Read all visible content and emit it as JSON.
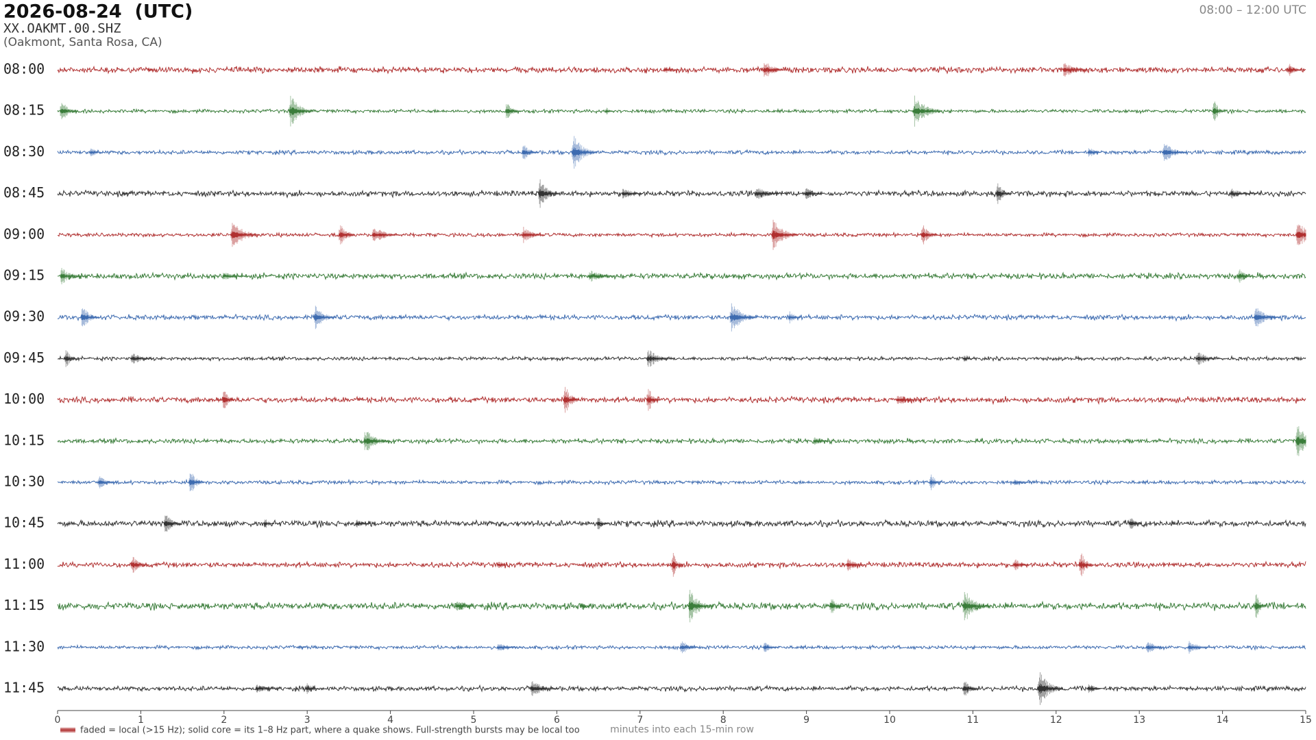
{
  "chart_data": {
    "type": "helicorder",
    "title": "2026-08-24  (UTC)",
    "station": "XX.OAKMT.00.SHZ",
    "location": "(Oakmont, Santa Rosa, CA)",
    "time_range": "08:00 – 12:00 UTC",
    "legend_text": "faded = local (>15 Hz); solid core = its 1–8 Hz part, where a quake shows. Full-strength bursts may be local too",
    "xlabel": "minutes into each 15-min row",
    "xlim": [
      0,
      15
    ],
    "xticks": [
      0,
      1,
      2,
      3,
      4,
      5,
      6,
      7,
      8,
      9,
      10,
      11,
      12,
      13,
      14,
      15
    ],
    "rows": [
      {
        "label": "08:00",
        "color": "#b03030",
        "bursts": [
          1.1,
          7.3,
          8.5,
          12.1,
          14.8
        ]
      },
      {
        "label": "08:15",
        "color": "#3a7d3a",
        "bursts": [
          0.05,
          2.8,
          5.4,
          6.6,
          10.3,
          13.9
        ]
      },
      {
        "label": "08:30",
        "color": "#3d6bb0",
        "bursts": [
          0.4,
          5.6,
          6.2,
          12.4,
          13.3
        ]
      },
      {
        "label": "08:45",
        "color": "#333333",
        "bursts": [
          0.8,
          5.8,
          6.8,
          8.4,
          9.0,
          11.3,
          14.1
        ]
      },
      {
        "label": "09:00",
        "color": "#b03030",
        "bursts": [
          2.1,
          3.4,
          3.8,
          5.6,
          8.6,
          10.4,
          14.9
        ]
      },
      {
        "label": "09:15",
        "color": "#3a7d3a",
        "bursts": [
          0.05,
          2.0,
          6.4,
          14.2
        ]
      },
      {
        "label": "09:30",
        "color": "#3d6bb0",
        "bursts": [
          0.3,
          3.1,
          8.1,
          8.8,
          14.4
        ]
      },
      {
        "label": "09:45",
        "color": "#333333",
        "bursts": [
          0.1,
          0.9,
          7.1,
          10.9,
          13.7
        ]
      },
      {
        "label": "10:00",
        "color": "#b03030",
        "bursts": [
          2.0,
          6.1,
          7.1,
          10.1
        ]
      },
      {
        "label": "10:15",
        "color": "#3a7d3a",
        "bursts": [
          3.7,
          9.1,
          14.9
        ]
      },
      {
        "label": "10:30",
        "color": "#3d6bb0",
        "bursts": [
          0.5,
          1.6,
          10.5,
          11.5
        ]
      },
      {
        "label": "10:45",
        "color": "#333333",
        "bursts": [
          1.3,
          2.5,
          3.6,
          6.5,
          12.9
        ]
      },
      {
        "label": "11:00",
        "color": "#b03030",
        "bursts": [
          0.9,
          5.3,
          7.4,
          9.5,
          11.5,
          12.3
        ]
      },
      {
        "label": "11:15",
        "color": "#3a7d3a",
        "bursts": [
          4.8,
          6.3,
          7.6,
          9.3,
          10.9,
          14.4
        ]
      },
      {
        "label": "11:30",
        "color": "#3d6bb0",
        "bursts": [
          2.9,
          5.3,
          7.5,
          8.5,
          13.1,
          13.6
        ]
      },
      {
        "label": "11:45",
        "color": "#333333",
        "bursts": [
          2.4,
          3.0,
          5.7,
          10.9,
          11.8,
          12.4
        ]
      }
    ]
  }
}
